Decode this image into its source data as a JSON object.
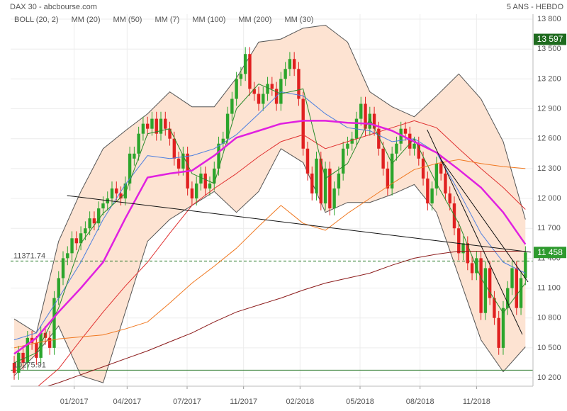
{
  "chart_data": {
    "type": "candlestick",
    "title": "DAX 30 - abcbourse.com",
    "subtitle": "5 ANS - HEBDO",
    "xlim": [
      -0.8,
      116.7
    ],
    "ylim": [
      10115,
      13850
    ],
    "grid": true,
    "up_color": "#2ca52c",
    "down_color": "#e02020",
    "yticks": [
      {
        "value": 10200,
        "label": "10 200"
      },
      {
        "value": 10500,
        "label": "10 500"
      },
      {
        "value": 10800,
        "label": "10 800"
      },
      {
        "value": 11100,
        "label": "11 100"
      },
      {
        "value": 11400,
        "label": "11 400"
      },
      {
        "value": 11700,
        "label": "11 700"
      },
      {
        "value": 12000,
        "label": "12 000"
      },
      {
        "value": 12300,
        "label": "12 300"
      },
      {
        "value": 12600,
        "label": "12 600"
      },
      {
        "value": 12900,
        "label": "12 900"
      },
      {
        "value": 13200,
        "label": "13 200"
      },
      {
        "value": 13500,
        "label": "13 500"
      },
      {
        "value": 13800,
        "label": "13 800"
      }
    ],
    "xticks": [
      {
        "value": 13.5,
        "label": "01/2017"
      },
      {
        "value": 25.4,
        "label": "04/2017"
      },
      {
        "value": 38.9,
        "label": "07/2017"
      },
      {
        "value": 51.6,
        "label": "11/2017"
      },
      {
        "value": 64.3,
        "label": "02/2018"
      },
      {
        "value": 77.8,
        "label": "05/2018"
      },
      {
        "value": 91.3,
        "label": "08/2018"
      },
      {
        "value": 104,
        "label": "11/2018"
      }
    ],
    "candles": [
      [
        10350,
        10420,
        10180,
        10250
      ],
      [
        10250,
        10520,
        10180,
        10450
      ],
      [
        10450,
        10520,
        10280,
        10350
      ],
      [
        10350,
        10670,
        10280,
        10600
      ],
      [
        10600,
        10670,
        10480,
        10550
      ],
      [
        10550,
        10620,
        10330,
        10400
      ],
      [
        10400,
        10720,
        10330,
        10650
      ],
      [
        10650,
        10720,
        10530,
        10600
      ],
      [
        10600,
        10670,
        10430,
        10500
      ],
      [
        10500,
        11070,
        10430,
        11000
      ],
      [
        11000,
        11270,
        10930,
        11200
      ],
      [
        11200,
        11470,
        11130,
        11400
      ],
      [
        11400,
        11520,
        11330,
        11450
      ],
      [
        11450,
        11670,
        11380,
        11600
      ],
      [
        11600,
        11670,
        11480,
        11550
      ],
      [
        11550,
        11720,
        11480,
        11650
      ],
      [
        11650,
        11770,
        11580,
        11700
      ],
      [
        11700,
        11870,
        11630,
        11800
      ],
      [
        11800,
        11870,
        11680,
        11750
      ],
      [
        11750,
        11970,
        11680,
        11900
      ],
      [
        11900,
        12020,
        11830,
        11950
      ],
      [
        11950,
        12070,
        11880,
        12000
      ],
      [
        12000,
        12170,
        11930,
        12100
      ],
      [
        12100,
        12170,
        11980,
        12050
      ],
      [
        12050,
        12120,
        11930,
        12000
      ],
      [
        12000,
        12220,
        11930,
        12150
      ],
      [
        12150,
        12520,
        12080,
        12450
      ],
      [
        12400,
        12520,
        12330,
        12450
      ],
      [
        12450,
        12720,
        12380,
        12650
      ],
      [
        12650,
        12820,
        12580,
        12750
      ],
      [
        12750,
        12820,
        12630,
        12700
      ],
      [
        12700,
        12870,
        12630,
        12800
      ],
      [
        12800,
        12870,
        12580,
        12650
      ],
      [
        12650,
        12870,
        12580,
        12800
      ],
      [
        12800,
        12870,
        12630,
        12700
      ],
      [
        12700,
        12770,
        12530,
        12600
      ],
      [
        12600,
        12670,
        12330,
        12400
      ],
      [
        12400,
        12470,
        12230,
        12300
      ],
      [
        12300,
        12520,
        12230,
        12450
      ],
      [
        12450,
        12520,
        12030,
        12100
      ],
      [
        12100,
        12170,
        11930,
        12000
      ],
      [
        12000,
        12220,
        11930,
        12150
      ],
      [
        12150,
        12320,
        12080,
        12250
      ],
      [
        12250,
        12320,
        12030,
        12100
      ],
      [
        12100,
        12220,
        12030,
        12150
      ],
      [
        12150,
        12370,
        12080,
        12300
      ],
      [
        12300,
        12620,
        12230,
        12550
      ],
      [
        12550,
        12670,
        12480,
        12600
      ],
      [
        12600,
        12920,
        12530,
        12850
      ],
      [
        12850,
        13070,
        12780,
        13000
      ],
      [
        13000,
        13270,
        12930,
        13200
      ],
      [
        13200,
        13320,
        13130,
        13250
      ],
      [
        13250,
        13520,
        13180,
        13450
      ],
      [
        13450,
        13520,
        13030,
        13100
      ],
      [
        13100,
        13170,
        12980,
        13050
      ],
      [
        13050,
        13120,
        12880,
        12950
      ],
      [
        12950,
        13120,
        12880,
        13050
      ],
      [
        13050,
        13220,
        12980,
        13150
      ],
      [
        13150,
        13220,
        13030,
        13100
      ],
      [
        13100,
        13170,
        12880,
        12950
      ],
      [
        12950,
        13270,
        12880,
        13200
      ],
      [
        13200,
        13370,
        13130,
        13300
      ],
      [
        13300,
        13470,
        13230,
        13400
      ],
      [
        13400,
        13470,
        13230,
        13300
      ],
      [
        13300,
        13370,
        12930,
        13000
      ],
      [
        13000,
        13070,
        12430,
        12500
      ],
      [
        12500,
        12570,
        12180,
        12250
      ],
      [
        12250,
        12320,
        11980,
        12050
      ],
      [
        12050,
        12470,
        11980,
        12400
      ],
      [
        12400,
        12470,
        11880,
        11950
      ],
      [
        11950,
        12370,
        11880,
        12300
      ],
      [
        12300,
        12370,
        11830,
        11900
      ],
      [
        11900,
        12170,
        11830,
        12100
      ],
      [
        12100,
        12320,
        12030,
        12250
      ],
      [
        12250,
        12570,
        12180,
        12500
      ],
      [
        12500,
        12620,
        12430,
        12550
      ],
      [
        12550,
        12670,
        12480,
        12600
      ],
      [
        12600,
        12870,
        12530,
        12800
      ],
      [
        12800,
        13020,
        12730,
        12950
      ],
      [
        12950,
        13020,
        12630,
        12700
      ],
      [
        12700,
        12920,
        12630,
        12850
      ],
      [
        12850,
        12920,
        12630,
        12700
      ],
      [
        12700,
        12770,
        12430,
        12500
      ],
      [
        12500,
        12570,
        12230,
        12300
      ],
      [
        12300,
        12370,
        12030,
        12100
      ],
      [
        12100,
        12520,
        12030,
        12450
      ],
      [
        12450,
        12620,
        12380,
        12550
      ],
      [
        12550,
        12770,
        12480,
        12700
      ],
      [
        12700,
        12770,
        12580,
        12650
      ],
      [
        12650,
        12720,
        12430,
        12500
      ],
      [
        12500,
        12620,
        12430,
        12550
      ],
      [
        12550,
        12620,
        12330,
        12400
      ],
      [
        12400,
        12470,
        12130,
        12200
      ],
      [
        12200,
        12270,
        11880,
        11950
      ],
      [
        11950,
        12170,
        11880,
        12100
      ],
      [
        12100,
        12420,
        12030,
        12350
      ],
      [
        12350,
        12420,
        12180,
        12250
      ],
      [
        12250,
        12320,
        11980,
        12050
      ],
      [
        12050,
        12120,
        11880,
        11950
      ],
      [
        11950,
        12020,
        11630,
        11700
      ],
      [
        11700,
        11770,
        11380,
        11450
      ],
      [
        11450,
        11620,
        11380,
        11550
      ],
      [
        11550,
        11620,
        11280,
        11350
      ],
      [
        11350,
        11420,
        11180,
        11250
      ],
      [
        11250,
        11470,
        11180,
        11400
      ],
      [
        11400,
        11470,
        10780,
        10850
      ],
      [
        10850,
        11370,
        10780,
        11300
      ],
      [
        11300,
        11370,
        10930,
        11000
      ],
      [
        11000,
        11070,
        10730,
        10800
      ],
      [
        10800,
        10870,
        10430,
        10500
      ],
      [
        10500,
        10970,
        10430,
        10900
      ],
      [
        10900,
        11170,
        10830,
        11100
      ],
      [
        11100,
        11370,
        11030,
        11300
      ],
      [
        11300,
        11370,
        10830,
        10900
      ],
      [
        10900,
        11270,
        10830,
        11200
      ],
      [
        11200,
        11520,
        11130,
        11458
      ]
    ],
    "series": [
      {
        "name": "BOLL (20, 2)",
        "color": "#555555",
        "fill": "#fde3d2",
        "x": [
          0,
          5,
          10,
          15,
          20,
          25,
          30,
          35,
          40,
          45,
          50,
          55,
          60,
          65,
          70,
          75,
          80,
          85,
          90,
          95,
          100,
          105,
          110,
          115
        ],
        "upper": [
          10790,
          10650,
          11570,
          12070,
          12500,
          12680,
          12850,
          13070,
          12920,
          12920,
          13210,
          13570,
          13600,
          13710,
          13740,
          13570,
          13070,
          12920,
          12820,
          13030,
          13250,
          13000,
          12570,
          11790
        ],
        "lower": [
          10220,
          10440,
          10720,
          10220,
          10150,
          10860,
          11570,
          11790,
          11930,
          12070,
          11860,
          12070,
          12500,
          12360,
          11860,
          11960,
          11960,
          12040,
          12140,
          11860,
          11220,
          10580,
          10260,
          10510
        ]
      },
      {
        "name": "MM (20)",
        "color": "#4d7fe0",
        "width": 1,
        "x": [
          0,
          5,
          10,
          15,
          20,
          25,
          30,
          35,
          40,
          45,
          50,
          55,
          60,
          65,
          70,
          75,
          80,
          85,
          90,
          95,
          100,
          105,
          110,
          115
        ],
        "values": [
          10580,
          10650,
          11000,
          11360,
          11790,
          12140,
          12430,
          12400,
          12430,
          12500,
          12640,
          12850,
          13070,
          13030,
          12850,
          12710,
          12680,
          12570,
          12600,
          12460,
          12070,
          11650,
          11360,
          11250
        ]
      },
      {
        "name": "MM (50)",
        "color": "#e03030",
        "width": 1,
        "x": [
          0,
          5,
          10,
          15,
          20,
          25,
          30,
          35,
          40,
          45,
          50,
          55,
          60,
          65,
          70,
          75,
          80,
          85,
          90,
          95,
          100,
          105,
          110,
          115
        ],
        "values": [
          10000,
          10100,
          10290,
          10580,
          10860,
          11120,
          11360,
          11650,
          11930,
          12100,
          12250,
          12420,
          12570,
          12640,
          12500,
          12570,
          12640,
          12710,
          12780,
          12710,
          12500,
          12300,
          12110,
          11890
        ]
      },
      {
        "name": "MM (7)",
        "color": "#2a8a2a",
        "width": 1,
        "x": [
          0,
          5,
          10,
          15,
          20,
          25,
          30,
          35,
          40,
          45,
          50,
          55,
          60,
          65,
          70,
          75,
          80,
          85,
          90,
          95,
          100,
          105,
          110,
          115
        ],
        "values": [
          10350,
          10450,
          10900,
          11550,
          11850,
          12050,
          12650,
          12700,
          12250,
          12150,
          12900,
          13150,
          13050,
          13100,
          12200,
          12350,
          12800,
          12350,
          12600,
          12150,
          11750,
          11200,
          10850,
          11150
        ]
      },
      {
        "name": "MM (100)",
        "color": "#f07820",
        "width": 1,
        "x": [
          0,
          5,
          10,
          15,
          20,
          25,
          30,
          35,
          40,
          45,
          50,
          55,
          60,
          65,
          70,
          75,
          80,
          85,
          90,
          95,
          100,
          105,
          110,
          115
        ],
        "values": [
          10500,
          10550,
          10590,
          10610,
          10630,
          10690,
          10760,
          10950,
          11150,
          11320,
          11500,
          11720,
          11930,
          11750,
          11680,
          11850,
          12000,
          12150,
          12290,
          12350,
          12390,
          12350,
          12320,
          12300
        ]
      },
      {
        "name": "MM (200)",
        "color": "#8b1a1a",
        "width": 1,
        "x": [
          0,
          5,
          10,
          15,
          20,
          25,
          30,
          35,
          40,
          45,
          50,
          55,
          60,
          65,
          70,
          75,
          80,
          85,
          90,
          95,
          100,
          105,
          110,
          115
        ],
        "values": [
          10000,
          10080,
          10150,
          10230,
          10310,
          10390,
          10470,
          10560,
          10650,
          10760,
          10860,
          10930,
          11000,
          11080,
          11150,
          11200,
          11250,
          11330,
          11400,
          11440,
          11470,
          11470,
          11470,
          11470
        ]
      },
      {
        "name": "MM (30)",
        "color": "#e020e0",
        "width": 2.5,
        "x": [
          0,
          5,
          10,
          15,
          20,
          25,
          30,
          35,
          40,
          45,
          50,
          55,
          60,
          65,
          70,
          75,
          80,
          85,
          90,
          95,
          100,
          105,
          110,
          115
        ],
        "values": [
          10440,
          10600,
          10860,
          11100,
          11360,
          11800,
          12210,
          12250,
          12280,
          12430,
          12610,
          12680,
          12750,
          12780,
          12780,
          12760,
          12750,
          12680,
          12570,
          12460,
          12290,
          12110,
          11860,
          11540
        ]
      }
    ],
    "trendlines": [
      {
        "x": [
          11.9,
          116.2
        ],
        "values": [
          12029,
          11460
        ]
      },
      {
        "x": [
          92.9,
          114.3
        ],
        "values": [
          12690,
          10635
        ]
      },
      {
        "x": [
          96,
          115.6
        ],
        "values": [
          12392,
          11161
        ]
      }
    ],
    "levels": [
      {
        "value": 11371.74,
        "color": "#2a7a2a",
        "dashed": true
      },
      {
        "value": 10275.91,
        "color": "#2a7a2a",
        "dashed": false
      }
    ],
    "price_boxes": [
      {
        "value": 13597,
        "label": "13 597",
        "color": "#1f6b1f"
      },
      {
        "value": 11458,
        "label": "11 458",
        "color": "#2e9a2e"
      }
    ]
  }
}
